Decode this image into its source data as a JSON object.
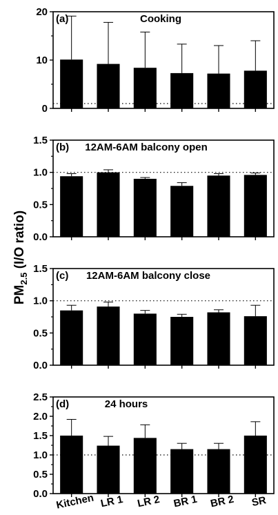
{
  "chart_data": {
    "type": "bar",
    "ylabel": {
      "prefix": "PM",
      "sub": "2.5",
      "suffix": " (I/O ratio)"
    },
    "categories": [
      "Kitchen",
      "LR 1",
      "LR 2",
      "BR 1",
      "BR 2",
      "SR"
    ],
    "panels": [
      {
        "label": "(a)",
        "title": "Cooking",
        "ylim": [
          0,
          20
        ],
        "yticks": [
          0,
          10,
          20
        ],
        "ytick_labels": [
          "0",
          "10",
          "20"
        ],
        "reference_line": 1.0,
        "values": [
          10.1,
          9.2,
          8.4,
          7.3,
          7.2,
          7.8
        ],
        "errors": [
          9.0,
          8.6,
          7.4,
          6.0,
          5.8,
          6.2
        ]
      },
      {
        "label": "(b)",
        "title": "12AM-6AM balcony open",
        "ylim": [
          0,
          1.5
        ],
        "yticks": [
          0,
          0.5,
          1.0,
          1.5
        ],
        "ytick_labels": [
          "0.0",
          "0.5",
          "1.0",
          "1.5"
        ],
        "reference_line": 1.0,
        "values": [
          0.94,
          1.0,
          0.9,
          0.79,
          0.95,
          0.96
        ],
        "errors": [
          0.04,
          0.04,
          0.02,
          0.05,
          0.03,
          0.03
        ]
      },
      {
        "label": "(c)",
        "title": "12AM-6AM balcony close",
        "ylim": [
          0,
          1.5
        ],
        "yticks": [
          0,
          0.5,
          1.0,
          1.5
        ],
        "ytick_labels": [
          "0.0",
          "0.5",
          "1.0",
          "1.5"
        ],
        "reference_line": 1.0,
        "values": [
          0.85,
          0.91,
          0.8,
          0.75,
          0.82,
          0.76
        ],
        "errors": [
          0.08,
          0.07,
          0.05,
          0.04,
          0.04,
          0.17
        ]
      },
      {
        "label": "(d)",
        "title": "24 hours",
        "ylim": [
          0,
          2.5
        ],
        "yticks": [
          0,
          0.5,
          1.0,
          1.5,
          2.0,
          2.5
        ],
        "ytick_labels": [
          "0.0",
          "0.5",
          "1.0",
          "1.5",
          "2.0",
          "2.5"
        ],
        "reference_line": 1.0,
        "values": [
          1.5,
          1.24,
          1.44,
          1.15,
          1.15,
          1.5
        ],
        "errors": [
          0.42,
          0.24,
          0.34,
          0.15,
          0.15,
          0.36
        ]
      }
    ]
  }
}
